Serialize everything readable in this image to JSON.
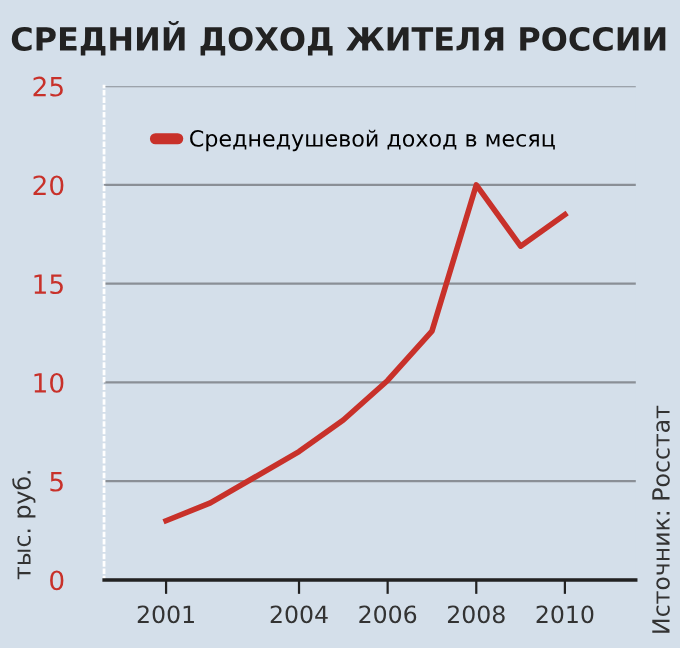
{
  "chart_data": {
    "type": "line",
    "title": "СРЕДНИЙ ДОХОД ЖИТЕЛЯ РОССИИ",
    "ylabel": "тыс. руб.",
    "annotations": [
      "Источник: Росстат"
    ],
    "x": [
      2001,
      2002,
      2003,
      2004,
      2005,
      2006,
      2007,
      2008,
      2009,
      2010
    ],
    "series": [
      {
        "name": "Среднедушевой доход в месяц",
        "color": "#c8312a",
        "values": [
          3.0,
          3.9,
          5.2,
          6.5,
          8.1,
          10.1,
          12.6,
          20.0,
          16.9,
          18.5
        ]
      }
    ],
    "xlim": [
      1999.6,
      2011.6
    ],
    "xticks": [
      2001,
      2004,
      2006,
      2008,
      2010
    ],
    "ylim": [
      0,
      25
    ],
    "yticks": [
      0,
      5,
      10,
      15,
      20,
      25
    ],
    "grid": "y",
    "legend": "top left",
    "marker": "none",
    "line_style": "solid"
  }
}
